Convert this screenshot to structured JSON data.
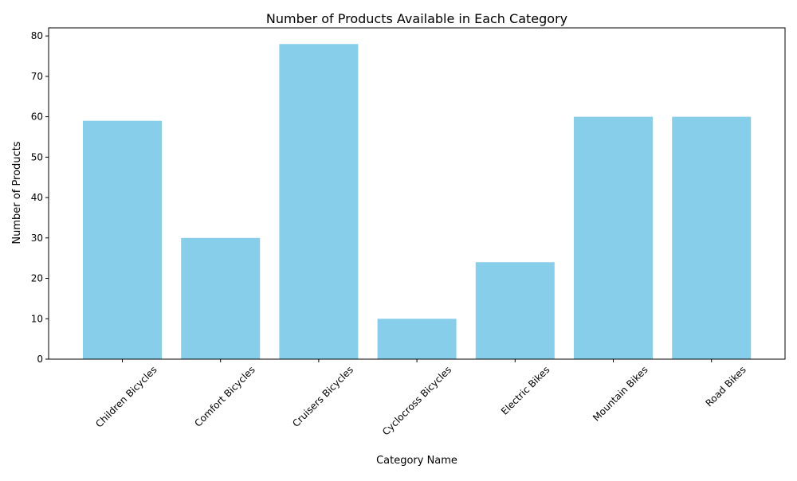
{
  "chart_data": {
    "type": "bar",
    "title": "Number of Products Available in Each Category",
    "xlabel": "Category Name",
    "ylabel": "Number of Products",
    "categories": [
      "Children Bicycles",
      "Comfort Bicycles",
      "Cruisers Bicycles",
      "Cyclocross Bicycles",
      "Electric Bikes",
      "Mountain Bikes",
      "Road Bikes"
    ],
    "values": [
      59,
      30,
      78,
      10,
      24,
      60,
      60
    ],
    "ylim": [
      0,
      82
    ],
    "yticks": [
      0,
      10,
      20,
      30,
      40,
      50,
      60,
      70,
      80
    ],
    "x_tick_rotation_deg": 45,
    "bar_color": "#87ceeb",
    "grid": false,
    "legend": "none"
  }
}
